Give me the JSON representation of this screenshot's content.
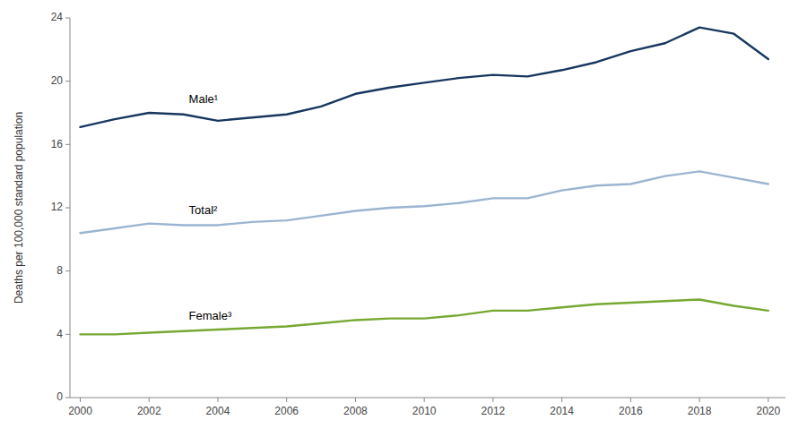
{
  "chart_data": {
    "type": "line",
    "x": [
      2000,
      2001,
      2002,
      2003,
      2004,
      2005,
      2006,
      2007,
      2008,
      2009,
      2010,
      2011,
      2012,
      2013,
      2014,
      2015,
      2016,
      2017,
      2018,
      2019,
      2020
    ],
    "series": [
      {
        "name": "Male¹",
        "color": "#17375e",
        "values": [
          17.1,
          17.6,
          18.0,
          17.9,
          17.5,
          17.7,
          17.9,
          18.4,
          19.2,
          19.6,
          19.9,
          20.2,
          20.4,
          20.3,
          20.7,
          21.2,
          21.9,
          22.4,
          23.4,
          23.0,
          21.4
        ]
      },
      {
        "name": "Total²",
        "color": "#9bb5d0",
        "values": [
          10.4,
          10.7,
          11.0,
          10.9,
          10.9,
          11.1,
          11.2,
          11.5,
          11.8,
          12.0,
          12.1,
          12.3,
          12.6,
          12.6,
          13.1,
          13.4,
          13.5,
          14.0,
          14.3,
          13.9,
          13.5
        ]
      },
      {
        "name": "Female³",
        "color": "#76a832",
        "values": [
          4.0,
          4.0,
          4.1,
          4.2,
          4.3,
          4.4,
          4.5,
          4.7,
          4.9,
          5.0,
          5.0,
          5.2,
          5.5,
          5.5,
          5.7,
          5.9,
          6.0,
          6.1,
          6.2,
          5.8,
          5.5
        ]
      }
    ],
    "y_label": "Deaths per 100,000 standard population",
    "xlim": [
      1999.7,
      2020.5
    ],
    "xticks": [
      2000,
      2002,
      2004,
      2006,
      2008,
      2010,
      2012,
      2014,
      2016,
      2018,
      2020
    ],
    "ylim": [
      0,
      24
    ],
    "yticks": [
      0,
      4,
      8,
      12,
      16,
      20,
      24
    ],
    "grid": false
  }
}
